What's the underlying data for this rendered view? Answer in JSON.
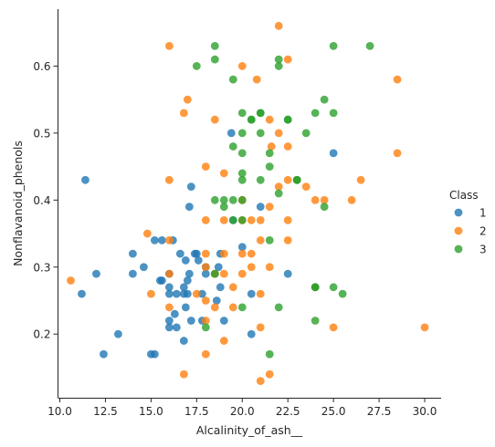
{
  "chart_data": {
    "type": "scatter",
    "xlabel": "Alcalinity_of_ash__",
    "ylabel": "Nonflavanoid_phenols",
    "xlim": [
      9.9,
      30.9
    ],
    "ylim": [
      0.105,
      0.685
    ],
    "xticks": [
      10.0,
      12.5,
      15.0,
      17.5,
      20.0,
      22.5,
      25.0,
      27.5,
      30.0
    ],
    "yticks": [
      0.2,
      0.3,
      0.4,
      0.5,
      0.6
    ],
    "xtick_labels": [
      "10.0",
      "12.5",
      "15.0",
      "17.5",
      "20.0",
      "22.5",
      "25.0",
      "27.5",
      "30.0"
    ],
    "ytick_labels": [
      "0.2",
      "0.3",
      "0.4",
      "0.5",
      "0.6"
    ],
    "grid": false,
    "legend": {
      "title": "Class",
      "placement": "right"
    },
    "series": [
      {
        "name": "1",
        "color": "#1f77b4",
        "points": [
          [
            11.2,
            0.26
          ],
          [
            11.4,
            0.43
          ],
          [
            12.0,
            0.29
          ],
          [
            12.4,
            0.17
          ],
          [
            13.2,
            0.2
          ],
          [
            14.0,
            0.29
          ],
          [
            14.0,
            0.32
          ],
          [
            14.6,
            0.3
          ],
          [
            15.0,
            0.17
          ],
          [
            15.2,
            0.17
          ],
          [
            15.2,
            0.34
          ],
          [
            15.5,
            0.28
          ],
          [
            15.6,
            0.28
          ],
          [
            15.6,
            0.34
          ],
          [
            16.0,
            0.21
          ],
          [
            16.0,
            0.22
          ],
          [
            16.0,
            0.26
          ],
          [
            16.0,
            0.27
          ],
          [
            16.0,
            0.29
          ],
          [
            16.2,
            0.34
          ],
          [
            16.3,
            0.23
          ],
          [
            16.4,
            0.26
          ],
          [
            16.4,
            0.21
          ],
          [
            16.6,
            0.32
          ],
          [
            16.8,
            0.19
          ],
          [
            16.8,
            0.27
          ],
          [
            16.8,
            0.26
          ],
          [
            16.9,
            0.24
          ],
          [
            16.9,
            0.31
          ],
          [
            17.0,
            0.26
          ],
          [
            17.0,
            0.28
          ],
          [
            17.1,
            0.39
          ],
          [
            17.1,
            0.29
          ],
          [
            17.2,
            0.42
          ],
          [
            17.2,
            0.22
          ],
          [
            17.4,
            0.32
          ],
          [
            17.5,
            0.32
          ],
          [
            17.6,
            0.31
          ],
          [
            17.8,
            0.26
          ],
          [
            17.8,
            0.22
          ],
          [
            18.0,
            0.29
          ],
          [
            18.0,
            0.3
          ],
          [
            18.5,
            0.29
          ],
          [
            18.6,
            0.25
          ],
          [
            18.7,
            0.3
          ],
          [
            18.8,
            0.32
          ],
          [
            18.8,
            0.27
          ],
          [
            19.0,
            0.22
          ],
          [
            19.4,
            0.5
          ],
          [
            19.5,
            0.37
          ],
          [
            20.0,
            0.33
          ],
          [
            20.5,
            0.2
          ],
          [
            20.5,
            0.26
          ],
          [
            21.0,
            0.39
          ],
          [
            22.5,
            0.29
          ],
          [
            25.0,
            0.47
          ]
        ]
      },
      {
        "name": "2",
        "color": "#ff7f0e",
        "points": [
          [
            10.6,
            0.28
          ],
          [
            14.8,
            0.35
          ],
          [
            15.0,
            0.26
          ],
          [
            16.0,
            0.63
          ],
          [
            16.0,
            0.43
          ],
          [
            16.0,
            0.34
          ],
          [
            16.0,
            0.29
          ],
          [
            16.0,
            0.24
          ],
          [
            16.8,
            0.53
          ],
          [
            16.8,
            0.14
          ],
          [
            17.0,
            0.55
          ],
          [
            17.5,
            0.26
          ],
          [
            18.0,
            0.45
          ],
          [
            18.0,
            0.37
          ],
          [
            18.0,
            0.32
          ],
          [
            18.0,
            0.3
          ],
          [
            18.0,
            0.25
          ],
          [
            18.0,
            0.22
          ],
          [
            18.0,
            0.17
          ],
          [
            18.5,
            0.52
          ],
          [
            18.5,
            0.29
          ],
          [
            18.5,
            0.24
          ],
          [
            19.0,
            0.44
          ],
          [
            19.0,
            0.37
          ],
          [
            19.0,
            0.32
          ],
          [
            19.0,
            0.29
          ],
          [
            19.0,
            0.19
          ],
          [
            19.5,
            0.27
          ],
          [
            19.5,
            0.24
          ],
          [
            20.0,
            0.6
          ],
          [
            20.0,
            0.4
          ],
          [
            20.0,
            0.37
          ],
          [
            20.0,
            0.32
          ],
          [
            20.0,
            0.29
          ],
          [
            20.5,
            0.3
          ],
          [
            20.5,
            0.37
          ],
          [
            20.5,
            0.32
          ],
          [
            20.8,
            0.58
          ],
          [
            21.0,
            0.37
          ],
          [
            21.0,
            0.34
          ],
          [
            21.0,
            0.26
          ],
          [
            21.0,
            0.21
          ],
          [
            21.0,
            0.13
          ],
          [
            21.5,
            0.52
          ],
          [
            21.5,
            0.39
          ],
          [
            21.5,
            0.3
          ],
          [
            21.5,
            0.14
          ],
          [
            21.6,
            0.48
          ],
          [
            22.0,
            0.66
          ],
          [
            22.0,
            0.5
          ],
          [
            22.0,
            0.42
          ],
          [
            22.5,
            0.61
          ],
          [
            22.5,
            0.48
          ],
          [
            22.5,
            0.43
          ],
          [
            22.5,
            0.37
          ],
          [
            22.5,
            0.34
          ],
          [
            23.0,
            0.43
          ],
          [
            23.5,
            0.42
          ],
          [
            24.0,
            0.4
          ],
          [
            24.0,
            0.27
          ],
          [
            24.5,
            0.4
          ],
          [
            25.0,
            0.21
          ],
          [
            26.0,
            0.4
          ],
          [
            26.5,
            0.43
          ],
          [
            28.5,
            0.58
          ],
          [
            28.5,
            0.47
          ],
          [
            30.0,
            0.21
          ]
        ]
      },
      {
        "name": "3",
        "color": "#2ca02c",
        "points": [
          [
            17.5,
            0.6
          ],
          [
            18.0,
            0.21
          ],
          [
            18.5,
            0.63
          ],
          [
            18.5,
            0.61
          ],
          [
            18.5,
            0.4
          ],
          [
            18.5,
            0.29
          ],
          [
            19.0,
            0.4
          ],
          [
            19.0,
            0.39
          ],
          [
            19.5,
            0.58
          ],
          [
            19.5,
            0.48
          ],
          [
            19.5,
            0.4
          ],
          [
            19.5,
            0.37
          ],
          [
            20.0,
            0.53
          ],
          [
            20.0,
            0.5
          ],
          [
            20.0,
            0.47
          ],
          [
            20.0,
            0.44
          ],
          [
            20.0,
            0.43
          ],
          [
            20.0,
            0.4
          ],
          [
            20.0,
            0.37
          ],
          [
            20.0,
            0.24
          ],
          [
            20.5,
            0.52
          ],
          [
            20.5,
            0.52
          ],
          [
            21.0,
            0.53
          ],
          [
            21.0,
            0.53
          ],
          [
            21.0,
            0.5
          ],
          [
            21.0,
            0.43
          ],
          [
            21.5,
            0.47
          ],
          [
            21.5,
            0.45
          ],
          [
            21.5,
            0.34
          ],
          [
            21.5,
            0.17
          ],
          [
            22.0,
            0.61
          ],
          [
            22.0,
            0.6
          ],
          [
            22.0,
            0.41
          ],
          [
            22.0,
            0.24
          ],
          [
            22.5,
            0.52
          ],
          [
            22.5,
            0.52
          ],
          [
            23.0,
            0.43
          ],
          [
            23.0,
            0.43
          ],
          [
            23.5,
            0.5
          ],
          [
            24.0,
            0.53
          ],
          [
            24.0,
            0.27
          ],
          [
            24.0,
            0.27
          ],
          [
            24.0,
            0.22
          ],
          [
            24.5,
            0.55
          ],
          [
            24.5,
            0.39
          ],
          [
            25.0,
            0.63
          ],
          [
            25.0,
            0.53
          ],
          [
            25.0,
            0.27
          ],
          [
            25.5,
            0.26
          ],
          [
            27.0,
            0.63
          ]
        ]
      }
    ]
  }
}
